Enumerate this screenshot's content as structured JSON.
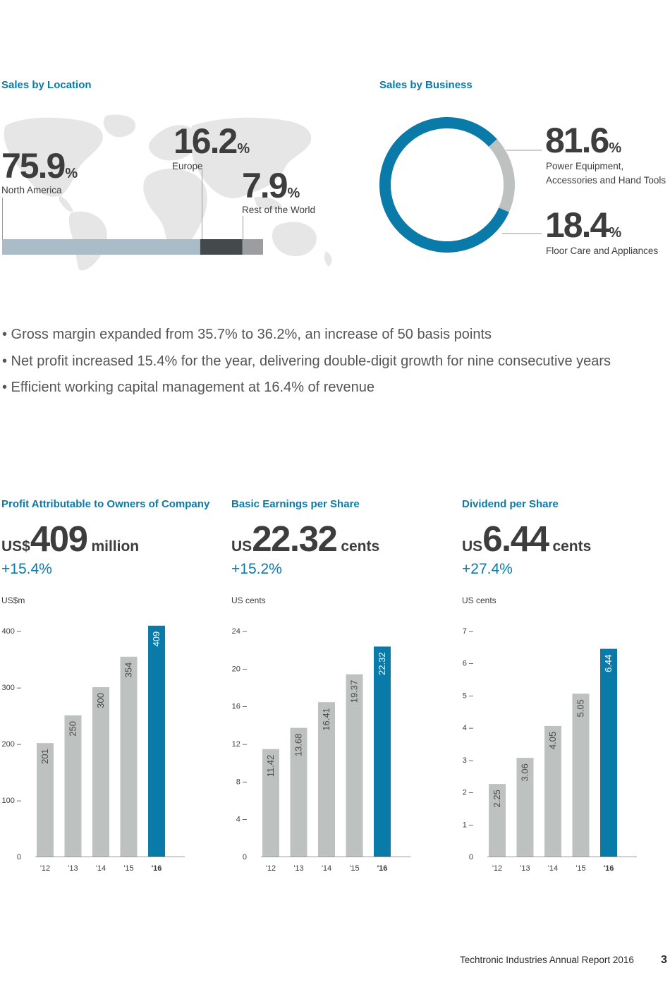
{
  "colors": {
    "accent": "#0a7aa8",
    "grey_bar": "#bdc1c0",
    "na_bar": "#a9bcc7",
    "eu_bar": "#424a4c",
    "row_bar": "#9c9d9f",
    "map": "#e6e6e6"
  },
  "location": {
    "title": "Sales by Location",
    "items": [
      {
        "value": "75.9",
        "pct": "%",
        "label": "North America",
        "share": 75.9
      },
      {
        "value": "16.2",
        "pct": "%",
        "label": "Europe",
        "share": 16.2
      },
      {
        "value": "7.9",
        "pct": "%",
        "label": "Rest of the World",
        "share": 7.9
      }
    ]
  },
  "business": {
    "title": "Sales by Business",
    "items": [
      {
        "value": "81.6",
        "pct": "%",
        "label_line1": "Power Equipment,",
        "label_line2": "Accessories and Hand Tools",
        "share": 81.6
      },
      {
        "value": "18.4",
        "pct": "%",
        "label_line1": "Floor Care and Appliances",
        "share": 18.4
      }
    ]
  },
  "bullets": [
    "• Gross margin expanded from 35.7% to 36.2%, an increase of 50 basis points",
    "• Net profit increased 15.4% for the year, delivering double-digit growth for nine consecutive years",
    "• Efficient working capital management at 16.4% of revenue"
  ],
  "kpis": [
    {
      "title": "Profit Attributable to Owners of Company",
      "currency": "US$",
      "value": "409",
      "unit": "million",
      "change": "+15.4%",
      "axis_unit": "US$m"
    },
    {
      "title": "Basic Earnings per Share",
      "currency": "US",
      "value": "22.32",
      "unit": "cents",
      "change": "+15.2%",
      "axis_unit": "US cents"
    },
    {
      "title": "Dividend per Share",
      "currency": "US",
      "value": "6.44",
      "unit": "cents",
      "change": "+27.4%",
      "axis_unit": "US cents"
    }
  ],
  "chart_data": [
    {
      "type": "pie",
      "title": "Sales by Location",
      "categories": [
        "North America",
        "Europe",
        "Rest of the World"
      ],
      "values": [
        75.9,
        16.2,
        7.9
      ]
    },
    {
      "type": "pie",
      "title": "Sales by Business",
      "categories": [
        "Power Equipment, Accessories and Hand Tools",
        "Floor Care and Appliances"
      ],
      "values": [
        81.6,
        18.4
      ]
    },
    {
      "type": "bar",
      "title": "Profit Attributable to Owners of Company",
      "ylabel": "US$m",
      "categories": [
        "'12",
        "'13",
        "'14",
        "'15",
        "'16"
      ],
      "values": [
        201,
        250,
        300,
        354,
        409
      ],
      "value_labels": [
        "201",
        "250",
        "300",
        "354",
        "409"
      ],
      "ylim": [
        0,
        400
      ],
      "yticks": [
        0,
        100,
        200,
        300,
        400
      ],
      "ytick_labels": [
        "0",
        "100 –",
        "200 –",
        "300 –",
        "400 –"
      ]
    },
    {
      "type": "bar",
      "title": "Basic Earnings per Share",
      "ylabel": "US cents",
      "categories": [
        "'12",
        "'13",
        "'14",
        "'15",
        "'16"
      ],
      "values": [
        11.42,
        13.68,
        16.41,
        19.37,
        22.32
      ],
      "value_labels": [
        "11.42",
        "13.68",
        "16.41",
        "19.37",
        "22.32"
      ],
      "ylim": [
        0,
        24
      ],
      "yticks": [
        0,
        4,
        8,
        12,
        16,
        20,
        24
      ],
      "ytick_labels": [
        "0",
        "4 –",
        "8 –",
        "12 –",
        "16 –",
        "20 –",
        "24 –"
      ]
    },
    {
      "type": "bar",
      "title": "Dividend per Share",
      "ylabel": "US cents",
      "categories": [
        "'12",
        "'13",
        "'14",
        "'15",
        "'16"
      ],
      "values": [
        2.25,
        3.06,
        4.05,
        5.05,
        6.44
      ],
      "value_labels": [
        "2.25",
        "3.06",
        "4.05",
        "5.05",
        "6.44"
      ],
      "ylim": [
        0,
        7
      ],
      "yticks": [
        0,
        1,
        2,
        3,
        4,
        5,
        6,
        7
      ],
      "ytick_labels": [
        "0",
        "1 –",
        "2 –",
        "3 –",
        "4 –",
        "5 –",
        "6 –",
        "7 –"
      ]
    }
  ],
  "footer": {
    "text": "Techtronic Industries Annual Report 2016",
    "page": "3"
  }
}
